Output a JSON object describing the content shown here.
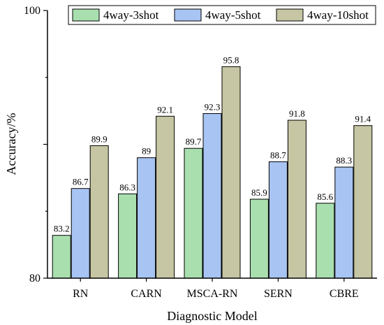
{
  "chart_data": {
    "type": "bar",
    "categories": [
      "RN",
      "CARN",
      "MSCA-RN",
      "SERN",
      "CBRE"
    ],
    "series": [
      {
        "name": "4way-3shot",
        "values": [
          83.2,
          86.3,
          89.7,
          85.9,
          85.6
        ],
        "color": "#a9dfae"
      },
      {
        "name": "4way-5shot",
        "values": [
          86.7,
          89,
          92.3,
          88.7,
          88.3
        ],
        "color": "#a8c4f2"
      },
      {
        "name": "4way-10shot",
        "values": [
          89.9,
          92.1,
          95.8,
          91.8,
          91.4
        ],
        "color": "#c6c6a4"
      }
    ],
    "xlabel": "Diagnostic Model",
    "ylabel": "Accuracy/%",
    "ylim": [
      80,
      100
    ],
    "yticks_labeled": [
      "80",
      "100"
    ],
    "legend": "top",
    "grid": false
  }
}
